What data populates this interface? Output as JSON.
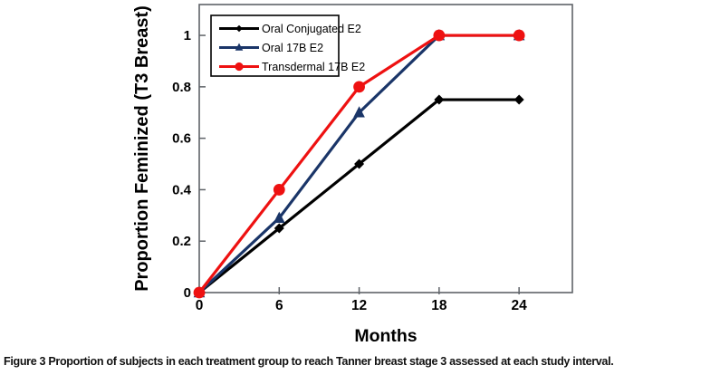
{
  "figure": {
    "caption_label": "Figure 3",
    "caption_text": "Proportion of subjects in each treatment group to reach Tanner breast stage 3 assessed at each study interval."
  },
  "chart_data": {
    "type": "line",
    "title": "",
    "xlabel": "Months",
    "ylabel": "Proportion Feminized (T3 Breast)",
    "x": [
      0,
      6,
      12,
      18,
      24
    ],
    "x_tick_labels": [
      "0",
      "6",
      "12",
      "18",
      "24"
    ],
    "y_ticks": [
      0,
      0.2,
      0.4,
      0.6,
      0.8,
      1
    ],
    "y_tick_labels": [
      "0",
      "0.2",
      "0.4",
      "0.6",
      "0.8",
      "1"
    ],
    "xlim": [
      0,
      28
    ],
    "ylim": [
      0,
      1.12
    ],
    "grid": false,
    "legend_position": "top-left-inside",
    "frame_color": "#5f6368",
    "axis_text_color": "#000000",
    "series": [
      {
        "name": "Oral Conjugated E2",
        "marker": "diamond",
        "color": "#000000",
        "values": [
          0,
          0.25,
          0.5,
          0.75,
          0.75
        ]
      },
      {
        "name": "Oral 17B E2",
        "marker": "triangle",
        "color": "#1A3568",
        "values": [
          0,
          0.29,
          0.7,
          1,
          1
        ]
      },
      {
        "name": "Transdermal 17B E2",
        "marker": "circle",
        "color": "#EE1111",
        "values": [
          0,
          0.4,
          0.8,
          1,
          1
        ]
      }
    ]
  }
}
